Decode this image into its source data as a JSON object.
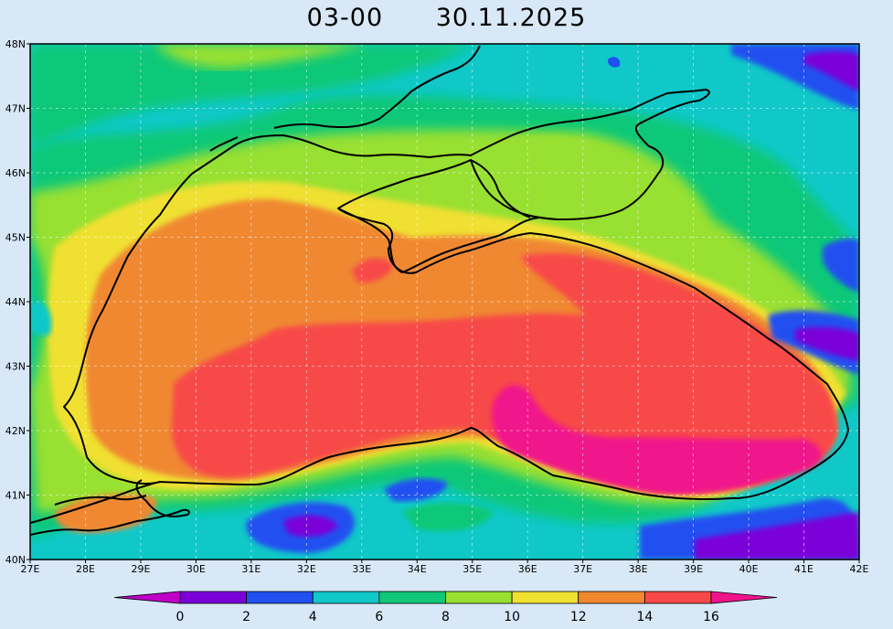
{
  "header": {
    "time_label": "03-00",
    "date_label": "30.11.2025"
  },
  "map": {
    "lon_ticks": [
      "27E",
      "28E",
      "29E",
      "30E",
      "31E",
      "32E",
      "33E",
      "34E",
      "35E",
      "36E",
      "37E",
      "38E",
      "39E",
      "40E",
      "41E",
      "42E"
    ],
    "lat_ticks": [
      "48N",
      "47N",
      "46N",
      "45N",
      "44N",
      "43N",
      "42N",
      "41N",
      "40N"
    ],
    "grid": true
  },
  "colorbar": {
    "labels": [
      "0",
      "2",
      "4",
      "6",
      "8",
      "10",
      "12",
      "14",
      "16"
    ],
    "colors": [
      "#c000c8",
      "#7b00d8",
      "#2050f0",
      "#10c8c8",
      "#10c878",
      "#98e030",
      "#f0e030",
      "#f08830",
      "#f84848",
      "#f0148c"
    ]
  }
}
